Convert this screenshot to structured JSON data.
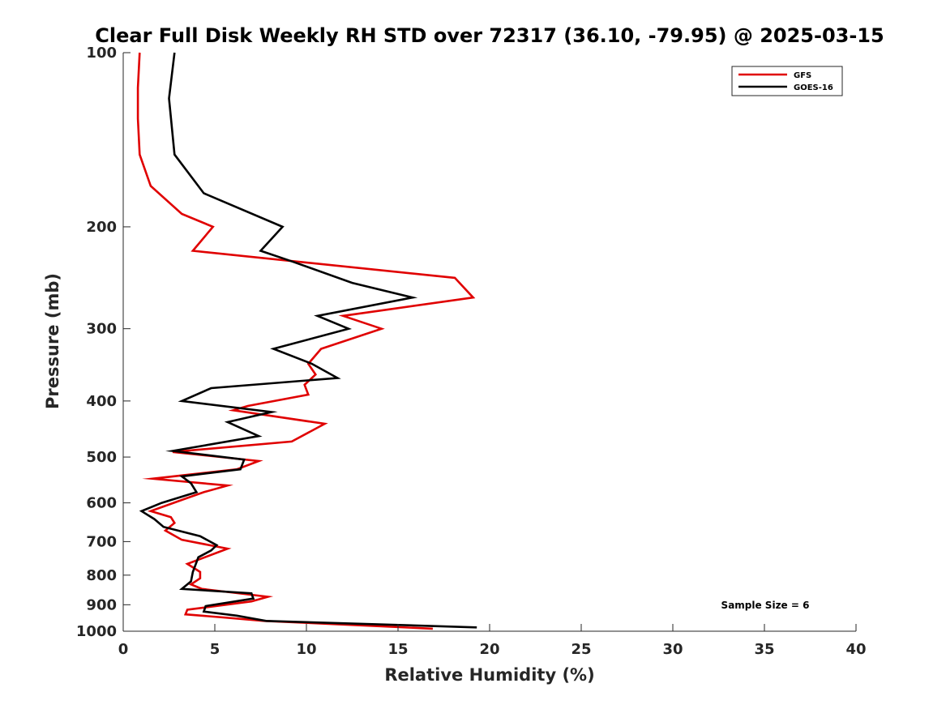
{
  "chart_data": {
    "type": "line",
    "title": "Clear Full Disk Weekly RH STD over 72317 (36.10, -79.95) @ 2025-03-15",
    "xlabel": "Relative Humidity (%)",
    "ylabel": "Pressure (mb)",
    "xlim": [
      0,
      40
    ],
    "ylim": [
      100,
      1000
    ],
    "y_scale": "log",
    "y_reversed": true,
    "x_ticks": [
      0,
      5,
      10,
      15,
      20,
      25,
      30,
      35,
      40
    ],
    "y_ticks": [
      100,
      200,
      300,
      400,
      500,
      600,
      700,
      800,
      900,
      1000
    ],
    "grid": false,
    "legend_position": "top-right",
    "annotation": "Sample Size = 6",
    "series": [
      {
        "name": "GFS",
        "color": "#e00000",
        "points": [
          [
            0.9,
            100
          ],
          [
            0.8,
            115
          ],
          [
            0.8,
            130
          ],
          [
            0.9,
            150
          ],
          [
            1.5,
            170
          ],
          [
            3.2,
            190
          ],
          [
            4.9,
            200
          ],
          [
            3.8,
            220
          ],
          [
            18.1,
            245
          ],
          [
            19.1,
            265
          ],
          [
            12.0,
            285
          ],
          [
            14.1,
            300
          ],
          [
            10.8,
            325
          ],
          [
            10.1,
            345
          ],
          [
            10.5,
            360
          ],
          [
            9.9,
            375
          ],
          [
            10.1,
            390
          ],
          [
            6.8,
            408
          ],
          [
            6.0,
            415
          ],
          [
            11.0,
            438
          ],
          [
            9.2,
            470
          ],
          [
            2.7,
            490
          ],
          [
            7.4,
            508
          ],
          [
            6.2,
            525
          ],
          [
            1.6,
            545
          ],
          [
            5.7,
            560
          ],
          [
            4.4,
            575
          ],
          [
            3.4,
            590
          ],
          [
            1.5,
            620
          ],
          [
            2.6,
            635
          ],
          [
            2.8,
            650
          ],
          [
            2.3,
            670
          ],
          [
            3.2,
            695
          ],
          [
            5.7,
            720
          ],
          [
            3.5,
            765
          ],
          [
            4.2,
            790
          ],
          [
            4.2,
            810
          ],
          [
            3.7,
            830
          ],
          [
            4.3,
            845
          ],
          [
            7.9,
            872
          ],
          [
            7.0,
            888
          ],
          [
            3.5,
            918
          ],
          [
            3.4,
            935
          ],
          [
            5.2,
            945
          ],
          [
            7.7,
            960
          ],
          [
            16.9,
            990
          ]
        ]
      },
      {
        "name": "GOES-16",
        "color": "#000000",
        "points": [
          [
            2.8,
            100
          ],
          [
            2.5,
            120
          ],
          [
            2.8,
            150
          ],
          [
            4.4,
            175
          ],
          [
            8.7,
            200
          ],
          [
            7.5,
            220
          ],
          [
            9.3,
            230
          ],
          [
            12.5,
            250
          ],
          [
            15.8,
            265
          ],
          [
            10.6,
            285
          ],
          [
            12.3,
            300
          ],
          [
            8.2,
            325
          ],
          [
            10.3,
            345
          ],
          [
            11.7,
            365
          ],
          [
            4.8,
            380
          ],
          [
            3.2,
            400
          ],
          [
            8.1,
            418
          ],
          [
            5.7,
            435
          ],
          [
            7.4,
            460
          ],
          [
            2.7,
            488
          ],
          [
            6.6,
            505
          ],
          [
            6.4,
            525
          ],
          [
            3.2,
            540
          ],
          [
            3.7,
            555
          ],
          [
            4.0,
            575
          ],
          [
            2.1,
            600
          ],
          [
            1.0,
            620
          ],
          [
            1.7,
            640
          ],
          [
            2.2,
            660
          ],
          [
            4.2,
            685
          ],
          [
            5.1,
            710
          ],
          [
            4.8,
            725
          ],
          [
            4.1,
            745
          ],
          [
            3.8,
            790
          ],
          [
            3.7,
            820
          ],
          [
            3.2,
            845
          ],
          [
            7.0,
            860
          ],
          [
            7.1,
            878
          ],
          [
            4.5,
            905
          ],
          [
            4.4,
            925
          ],
          [
            6.2,
            940
          ],
          [
            7.8,
            960
          ],
          [
            19.3,
            985
          ]
        ]
      }
    ]
  }
}
